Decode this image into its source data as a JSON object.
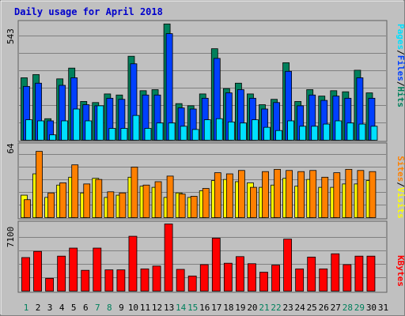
{
  "title": "Daily usage for April 2018",
  "colors": {
    "background": "#C0C0C0",
    "border": "#808080",
    "title": "#0000CC",
    "hits": "#00805C",
    "files": "#0040FF",
    "pages": "#00E0FF",
    "visits": "#FFFF00",
    "sites": "#FF8000",
    "kbytes": "#FF0000",
    "weekend_label": "#00805C",
    "weekday_label": "#000000",
    "grid": "#808080"
  },
  "chart_data": {
    "type": "bar",
    "title": "Daily usage for April 2018",
    "categories": [
      "1",
      "2",
      "3",
      "4",
      "5",
      "6",
      "7",
      "8",
      "9",
      "10",
      "11",
      "12",
      "13",
      "14",
      "15",
      "16",
      "17",
      "18",
      "19",
      "20",
      "21",
      "22",
      "23",
      "24",
      "25",
      "26",
      "27",
      "28",
      "29",
      "30",
      "31"
    ],
    "weekend_days": [
      1,
      7,
      8,
      14,
      15,
      21,
      22,
      28,
      29
    ],
    "panels": [
      {
        "id": "hits_files_pages",
        "max_label": "543",
        "ymax": 543,
        "legend": [
          "Pages",
          "Files",
          "Hits"
        ],
        "series": [
          {
            "name": "Hits",
            "color_key": "hits",
            "values": [
              290,
              305,
              100,
              285,
              335,
              180,
              175,
              215,
              210,
              390,
              230,
              235,
              540,
              170,
              160,
              215,
              425,
              240,
              265,
              215,
              165,
              190,
              360,
              180,
              235,
              205,
              230,
              225,
              325,
              220,
              0
            ]
          },
          {
            "name": "Files",
            "color_key": "files",
            "values": [
              250,
              265,
              90,
              255,
              290,
              165,
              160,
              195,
              190,
              355,
              210,
              210,
              495,
              150,
              145,
              195,
              380,
              220,
              235,
              195,
              145,
              175,
              320,
              160,
              210,
              185,
              205,
              195,
              290,
              195,
              0
            ]
          },
          {
            "name": "Pages",
            "color_key": "pages",
            "values": [
              95,
              90,
              25,
              90,
              145,
              90,
              160,
              55,
              55,
              115,
              55,
              80,
              80,
              65,
              50,
              95,
              100,
              85,
              80,
              95,
              60,
              45,
              90,
              65,
              65,
              75,
              90,
              80,
              75,
              65,
              0
            ]
          }
        ]
      },
      {
        "id": "visits_sites",
        "max_label": "64",
        "ymax": 64,
        "legend": [
          "Sites",
          "Visits"
        ],
        "series": [
          {
            "name": "Visits",
            "color_key": "visits",
            "values": [
              20,
              39,
              18,
              29,
              36,
              22,
              35,
              18,
              20,
              36,
              28,
              27,
              18,
              22,
              18,
              24,
              33,
              34,
              32,
              31,
              27,
              29,
              35,
              28,
              34,
              27,
              27,
              30,
              30,
              33,
              0
            ]
          },
          {
            "name": "Sites",
            "color_key": "sites",
            "values": [
              16,
              59,
              22,
              31,
              47,
              30,
              34,
              23,
              22,
              45,
              29,
              32,
              37,
              21,
              19,
              26,
              40,
              39,
              42,
              27,
              41,
              43,
              42,
              41,
              42,
              36,
              40,
              43,
              42,
              41,
              0
            ]
          }
        ]
      },
      {
        "id": "kbytes",
        "max_label": "7100",
        "ymax": 7100,
        "legend": [
          "KBytes"
        ],
        "series": [
          {
            "name": "KBytes",
            "color_key": "kbytes",
            "values": [
              3550,
              4200,
              1350,
              3700,
              4550,
              2200,
              4550,
              2250,
              2250,
              5800,
              2350,
              2650,
              7100,
              2300,
              1600,
              2800,
              5600,
              2950,
              3650,
              2900,
              2000,
              2750,
              5500,
              2350,
              3600,
              2350,
              3950,
              2800,
              3700,
              3700,
              0
            ]
          }
        ]
      }
    ]
  }
}
